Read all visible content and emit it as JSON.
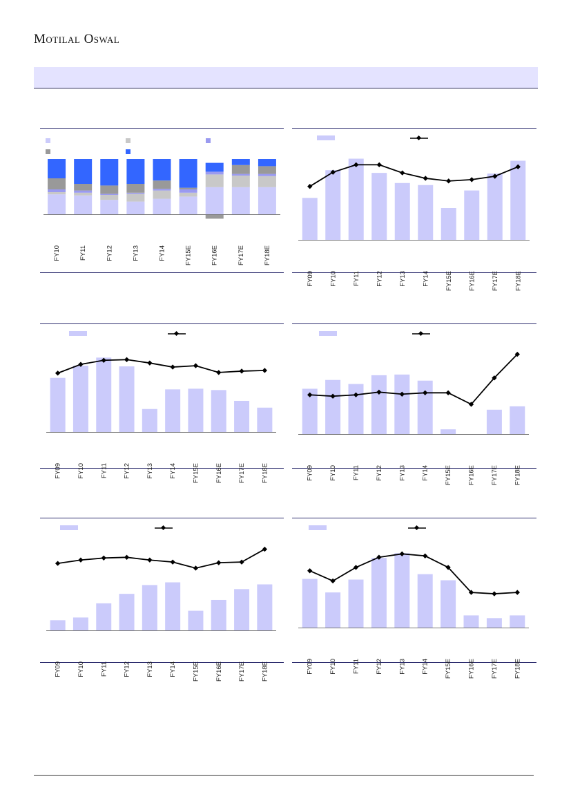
{
  "header": {
    "brand": "Motilal Oswal"
  },
  "colors": {
    "bar_light": "#cbcbfb",
    "line": "#000000",
    "blue": "#3366ff",
    "gray_dark": "#999999",
    "gray_light": "#c8c8c8",
    "purple": "#9a9af0",
    "rule": "#2d2d6e"
  },
  "chart_data": [
    {
      "type": "bar",
      "stacked": true,
      "categories": [
        "FY10",
        "FY11",
        "FY12",
        "FY13",
        "FY14",
        "FY15E",
        "FY16E",
        "FY17E",
        "FY18E"
      ],
      "series": [
        {
          "values": [
            36,
            34,
            26,
            23,
            28,
            32,
            49,
            49,
            49
          ]
        },
        {
          "values": [
            4,
            5,
            9,
            14,
            15,
            7,
            23,
            21,
            20
          ]
        },
        {
          "values": [
            5,
            4,
            2,
            2,
            3,
            6,
            5,
            3,
            4
          ]
        },
        {
          "values": [
            20,
            12,
            15,
            16,
            15,
            3,
            -8,
            16,
            14
          ]
        },
        {
          "values": [
            35,
            45,
            48,
            45,
            39,
            52,
            16,
            11,
            13
          ]
        }
      ],
      "ylim": [
        -20,
        100
      ]
    },
    {
      "type": "bar+line",
      "categories": [
        "FY09",
        "FY10",
        "FY11",
        "FY12",
        "FY13",
        "FY14",
        "FY15E",
        "FY16E",
        "FY17E",
        "FY18E"
      ],
      "bar_values": [
        62,
        103,
        120,
        99,
        84,
        81,
        47,
        73,
        98,
        117
      ],
      "line_values": [
        79,
        100,
        111,
        111,
        99,
        91,
        87,
        89,
        94,
        108
      ],
      "ylim": [
        0,
        140
      ]
    },
    {
      "type": "bar+line",
      "categories": [
        "FY09",
        "FY10",
        "FY11",
        "FY12",
        "FY13",
        "FY14",
        "FY15E",
        "FY16E",
        "FY17E",
        "FY18E"
      ],
      "bar_values": [
        80,
        98,
        110,
        97,
        34,
        63,
        64,
        62,
        46,
        36
      ],
      "line_values": [
        87,
        100,
        106,
        107,
        102,
        96,
        98,
        88,
        90,
        91
      ],
      "ylim": [
        0,
        140
      ]
    },
    {
      "type": "bar+line",
      "categories": [
        "FY09",
        "FY10",
        "FY11",
        "FY12",
        "FY13",
        "FY14",
        "FY15E",
        "FY16E",
        "FY17E",
        "FY18E"
      ],
      "bar_values": [
        67,
        80,
        74,
        87,
        88,
        79,
        7,
        0,
        36,
        41
      ],
      "line_values": [
        58,
        56,
        58,
        62,
        59,
        61,
        61,
        44,
        83,
        118
      ],
      "ylim": [
        0,
        140
      ]
    },
    {
      "type": "bar+line",
      "categories": [
        "FY09",
        "FY10",
        "FY11",
        "FY12",
        "FY13",
        "FY14",
        "FY15E",
        "FY16E",
        "FY17E",
        "FY18E"
      ],
      "bar_values": [
        15,
        19,
        40,
        54,
        67,
        71,
        29,
        45,
        61,
        68
      ],
      "line_values": [
        99,
        104,
        107,
        108,
        104,
        101,
        92,
        100,
        101,
        120
      ],
      "ylim": [
        0,
        140
      ]
    },
    {
      "type": "bar+line",
      "categories": [
        "FY09",
        "FY10",
        "FY11",
        "FY12",
        "FY13",
        "FY14",
        "FY15E",
        "FY16E",
        "FY17E",
        "FY18E"
      ],
      "bar_values": [
        72,
        52,
        71,
        103,
        110,
        79,
        70,
        18,
        14,
        18
      ],
      "line_values": [
        84,
        69,
        89,
        104,
        109,
        106,
        89,
        52,
        50,
        52
      ],
      "ylim": [
        0,
        140
      ]
    }
  ]
}
